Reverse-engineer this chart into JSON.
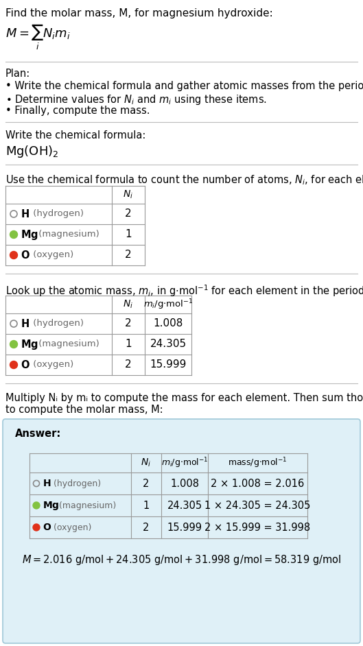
{
  "title_line1": "Find the molar mass, M, for magnesium hydroxide:",
  "title_formula": "M = Σ N_i m_i",
  "bg_color": "#ffffff",
  "section_bg_answer": "#dff0f7",
  "table_border_color": "#999999",
  "elements": [
    "H",
    "Mg",
    "O"
  ],
  "element_names": [
    "hydrogen",
    "magnesium",
    "oxygen"
  ],
  "element_colors": [
    "none",
    "#82c341",
    "#e0311a"
  ],
  "N_i": [
    2,
    1,
    2
  ],
  "m_i": [
    1.008,
    24.305,
    15.999
  ],
  "mass_expr": [
    "2 × 1.008 = 2.016",
    "1 × 24.305 = 24.305",
    "2 × 15.999 = 31.998"
  ],
  "final_eq": "M = 2.016 g/mol + 24.305 g/mol + 31.998 g/mol = 58.319 g/mol",
  "chemical_formula_text": "Mg(OH)",
  "plan_text": "Plan:\n• Write the chemical formula and gather atomic masses from the periodic table.\n• Determine values for Nᵢ and mᵢ using these items.\n• Finally, compute the mass.",
  "section2_text": "Write the chemical formula:",
  "section3_text": "Use the chemical formula to count the number of atoms, Nᵢ, for each element:",
  "section4_text": "Look up the atomic mass, mᵢ, in g·mol⁻¹ for each element in the periodic table:",
  "section5_text": "Multiply Nᵢ by mᵢ to compute the mass for each element. Then sum those values\nto compute the molar mass, M:"
}
